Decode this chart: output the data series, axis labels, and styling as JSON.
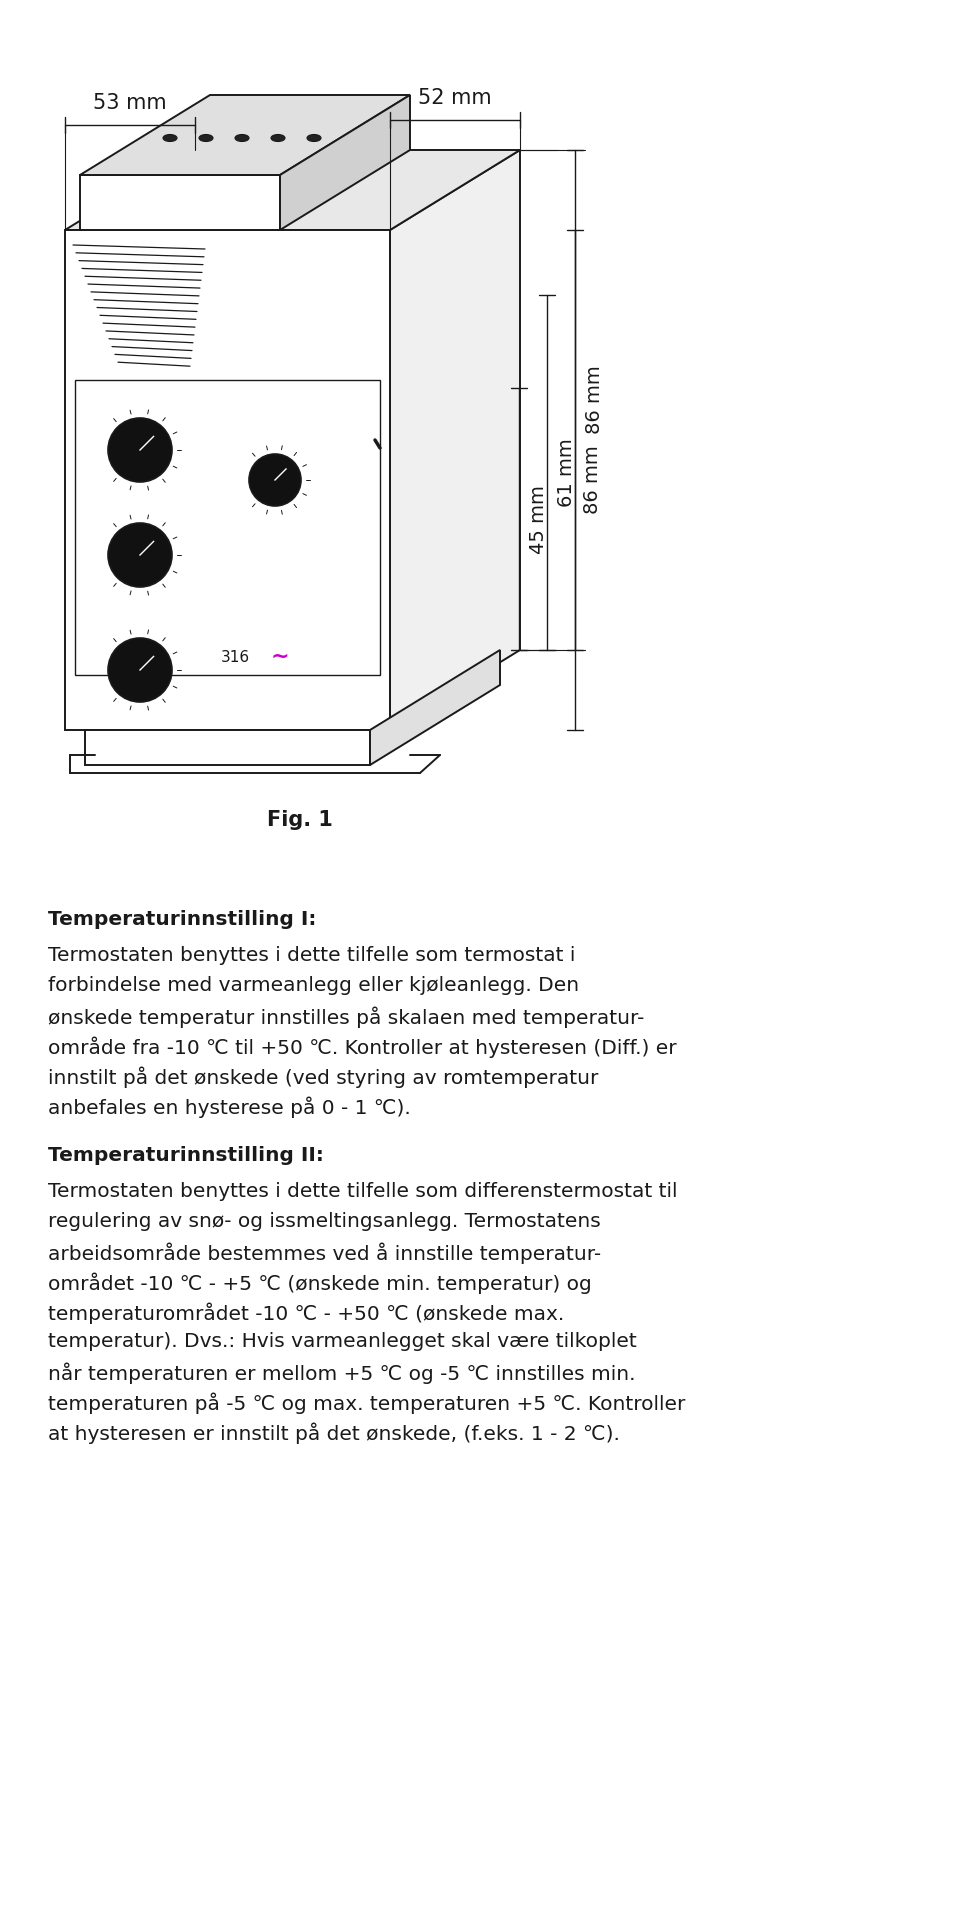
{
  "fig_label": "Fig. 1",
  "dim_53": "53 mm",
  "dim_52": "52 mm",
  "dim_45": "45 mm",
  "dim_61": "61 mm",
  "dim_86": "86 mm",
  "section1_title": "Temperaturinnstilling I:",
  "section1_lines": [
    "Termostaten benyttes i dette tilfelle som termostat i",
    "forbindelse med varmeanlegg eller kjøleanlegg. Den",
    "ønskede temperatur innstilles på skalaen med temperatur-",
    "område fra -10 ℃ til +50 ℃. Kontroller at hysteresen (Diff.) er",
    "innstilt på det ønskede (ved styring av romtemperatur",
    "anbefales en hysterese på 0 - 1 ℃)."
  ],
  "section2_title": "Temperaturinnstilling II:",
  "section2_lines": [
    "Termostaten benyttes i dette tilfelle som differenstermostat til",
    "regulering av snø- og issmeltingsanlegg. Termostatens",
    "arbeidsområde bestemmes ved å innstille temperatur-",
    "området -10 ℃ - +5 ℃ (ønskede min. temperatur) og",
    "temperaturområdet -10 ℃ - +50 ℃ (ønskede max.",
    "temperatur). Dvs.: Hvis varmeanlegget skal være tilkoplet",
    "når temperaturen er mellom +5 ℃ og -5 ℃ innstilles min.",
    "temperaturen på -5 ℃ og max. temperaturen +5 ℃. Kontroller",
    "at hysteresen er innstilt på det ønskede, (f.eks. 1 - 2 ℃)."
  ],
  "background_color": "#ffffff",
  "text_color": "#1a1a1a",
  "body_fontsize": 14.5,
  "title_fontsize": 14.5,
  "fig_fontsize": 15
}
